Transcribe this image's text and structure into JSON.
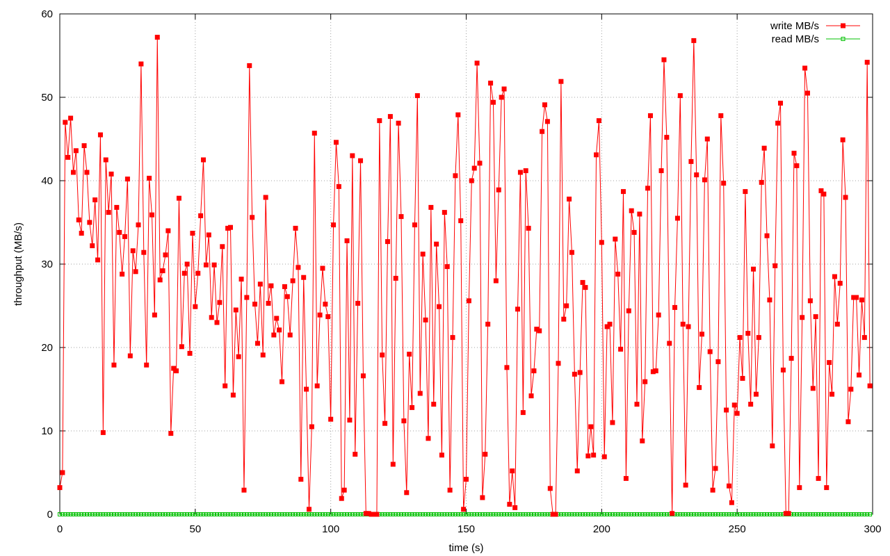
{
  "chart_data": {
    "type": "line",
    "title": "",
    "xlabel": "time (s)",
    "ylabel": "throughput (MB/s)",
    "xlim": [
      0,
      300
    ],
    "ylim": [
      0,
      60
    ],
    "x_ticks": [
      "0",
      "50",
      "100",
      "150",
      "200",
      "250",
      "300"
    ],
    "y_ticks": [
      "0",
      "10",
      "20",
      "30",
      "40",
      "50",
      "60"
    ],
    "grid": true,
    "legend_position": "top-right",
    "series": [
      {
        "name": "write MB/s",
        "color": "#ff0000",
        "marker": "filled-square",
        "x": [
          0,
          1,
          2,
          3,
          4,
          5,
          6,
          7,
          8,
          9,
          10,
          11,
          12,
          13,
          14,
          15,
          16,
          17,
          18,
          19,
          20,
          21,
          22,
          23,
          24,
          25,
          26,
          27,
          28,
          29,
          30,
          31,
          32,
          33,
          34,
          35,
          36,
          37,
          38,
          39,
          40,
          41,
          42,
          43,
          44,
          45,
          46,
          47,
          48,
          49,
          50,
          51,
          52,
          53,
          54,
          55,
          56,
          57,
          58,
          59,
          60,
          61,
          62,
          63,
          64,
          65,
          66,
          67,
          68,
          69,
          70,
          71,
          72,
          73,
          74,
          75,
          76,
          77,
          78,
          79,
          80,
          81,
          82,
          83,
          84,
          85,
          86,
          87,
          88,
          89,
          90,
          91,
          92,
          93,
          94,
          95,
          96,
          97,
          98,
          99,
          100,
          101,
          102,
          103,
          104,
          105,
          106,
          107,
          108,
          109,
          110,
          111,
          112,
          113,
          114,
          115,
          116,
          117,
          118,
          119,
          120,
          121,
          122,
          123,
          124,
          125,
          126,
          127,
          128,
          129,
          130,
          131,
          132,
          133,
          134,
          135,
          136,
          137,
          138,
          139,
          140,
          141,
          142,
          143,
          144,
          145,
          146,
          147,
          148,
          149,
          150,
          151,
          152,
          153,
          154,
          155,
          156,
          157,
          158,
          159,
          160,
          161,
          162,
          163,
          164,
          165,
          166,
          167,
          168,
          169,
          170,
          171,
          172,
          173,
          174,
          175,
          176,
          177,
          178,
          179,
          180,
          181,
          182,
          183,
          184,
          185,
          186,
          187,
          188,
          189,
          190,
          191,
          192,
          193,
          194,
          195,
          196,
          197,
          198,
          199,
          200,
          201,
          202,
          203,
          204,
          205,
          206,
          207,
          208,
          209,
          210,
          211,
          212,
          213,
          214,
          215,
          216,
          217,
          218,
          219,
          220,
          221,
          222,
          223,
          224,
          225,
          226,
          227,
          228,
          229,
          230,
          231,
          232,
          233,
          234,
          235,
          236,
          237,
          238,
          239,
          240,
          241,
          242,
          243,
          244,
          245,
          246,
          247,
          248,
          249,
          250,
          251,
          252,
          253,
          254,
          255,
          256,
          257,
          258,
          259,
          260,
          261,
          262,
          263,
          264,
          265,
          266,
          267,
          268,
          269,
          270,
          271,
          272,
          273,
          274,
          275,
          276,
          277,
          278,
          279,
          280,
          281,
          282,
          283,
          284,
          285,
          286,
          287,
          288,
          289,
          290,
          291,
          292,
          293,
          294,
          295,
          296,
          297,
          298,
          299
        ],
        "values": [
          3.2,
          5.0,
          47.0,
          42.8,
          47.5,
          41.0,
          43.6,
          35.3,
          33.7,
          44.2,
          41.0,
          35.0,
          32.2,
          37.7,
          30.5,
          45.5,
          9.8,
          42.5,
          36.2,
          40.8,
          17.9,
          36.8,
          33.8,
          28.8,
          33.3,
          40.2,
          19.0,
          31.6,
          29.1,
          34.7,
          54.0,
          31.4,
          17.9,
          40.3,
          35.9,
          23.9,
          57.2,
          28.1,
          29.2,
          31.1,
          34.0,
          9.7,
          17.5,
          17.2,
          37.9,
          20.1,
          28.9,
          30.0,
          19.3,
          33.7,
          24.9,
          28.9,
          35.8,
          42.5,
          29.9,
          33.5,
          23.6,
          29.9,
          23.0,
          25.4,
          32.1,
          15.4,
          34.3,
          34.4,
          14.3,
          24.5,
          18.9,
          28.2,
          2.9,
          26.0,
          53.8,
          35.6,
          25.2,
          20.5,
          27.6,
          19.1,
          38.0,
          25.3,
          27.4,
          21.5,
          23.5,
          22.1,
          15.9,
          27.3,
          26.1,
          21.5,
          28.0,
          34.3,
          29.6,
          4.2,
          28.4,
          15.0,
          0.6,
          10.5,
          45.7,
          15.4,
          23.9,
          29.5,
          25.2,
          23.7,
          11.4,
          34.7,
          44.6,
          39.3,
          1.9,
          2.9,
          32.8,
          11.3,
          43.0,
          7.2,
          25.3,
          42.4,
          16.6,
          0.1,
          0.1,
          0.0,
          0.0,
          0.0,
          47.2,
          19.1,
          10.9,
          32.7,
          47.7,
          6.0,
          28.3,
          46.9,
          35.7,
          11.2,
          2.6,
          19.2,
          12.8,
          34.7,
          50.2,
          14.5,
          31.2,
          23.3,
          9.1,
          36.8,
          13.2,
          32.4,
          24.9,
          7.1,
          36.2,
          29.7,
          2.9,
          21.2,
          40.6,
          47.9,
          35.2,
          0.6,
          4.2,
          25.6,
          40.0,
          41.5,
          54.1,
          42.1,
          2.0,
          7.2,
          22.8,
          51.7,
          49.4,
          28.0,
          38.9,
          50.0,
          51.0,
          17.6,
          1.2,
          5.2,
          0.8,
          24.6,
          41.0,
          12.2,
          41.2,
          34.3,
          14.2,
          17.2,
          22.2,
          22.0,
          45.9,
          49.1,
          47.1,
          3.1,
          0.0,
          0.0,
          18.1,
          51.9,
          23.4,
          25.0,
          37.8,
          31.4,
          16.8,
          5.2,
          17.0,
          27.8,
          27.2,
          7.0,
          10.5,
          7.1,
          43.1,
          47.2,
          32.6,
          6.9,
          22.5,
          22.8,
          11.0,
          33.0,
          28.8,
          19.8,
          38.7,
          4.3,
          24.4,
          36.4,
          33.8,
          13.2,
          36.0,
          8.8,
          15.9,
          39.1,
          47.8,
          17.1,
          17.2,
          23.9,
          41.2,
          54.5,
          45.2,
          20.5,
          0.1,
          24.8,
          35.5,
          50.2,
          22.8,
          3.5,
          22.5,
          42.3,
          56.8,
          40.7,
          15.2,
          21.6,
          40.1,
          45.0,
          19.5,
          2.9,
          5.5,
          18.3,
          47.8,
          39.7,
          12.5,
          3.4,
          1.4,
          13.1,
          12.1,
          21.2,
          16.3,
          38.7,
          21.7,
          13.2,
          29.4,
          14.4,
          21.2,
          39.8,
          43.9,
          33.4,
          25.7,
          8.2,
          29.8,
          46.9,
          49.3,
          17.3,
          0.1,
          0.1,
          18.7,
          43.3,
          41.8,
          3.2,
          23.6,
          53.5,
          50.5,
          25.6,
          15.1,
          23.7,
          4.3,
          38.8,
          38.4,
          3.2,
          18.2,
          14.4,
          28.5,
          22.8,
          27.7,
          44.9,
          38.0,
          11.1,
          15.0,
          26.0,
          26.0,
          16.7,
          25.7,
          21.2,
          54.2,
          15.4
        ]
      },
      {
        "name": "read MB/s",
        "color": "#00c000",
        "marker": "open-square",
        "x": [
          0,
          300
        ],
        "values": [
          0,
          0
        ],
        "constant": 0
      }
    ]
  }
}
